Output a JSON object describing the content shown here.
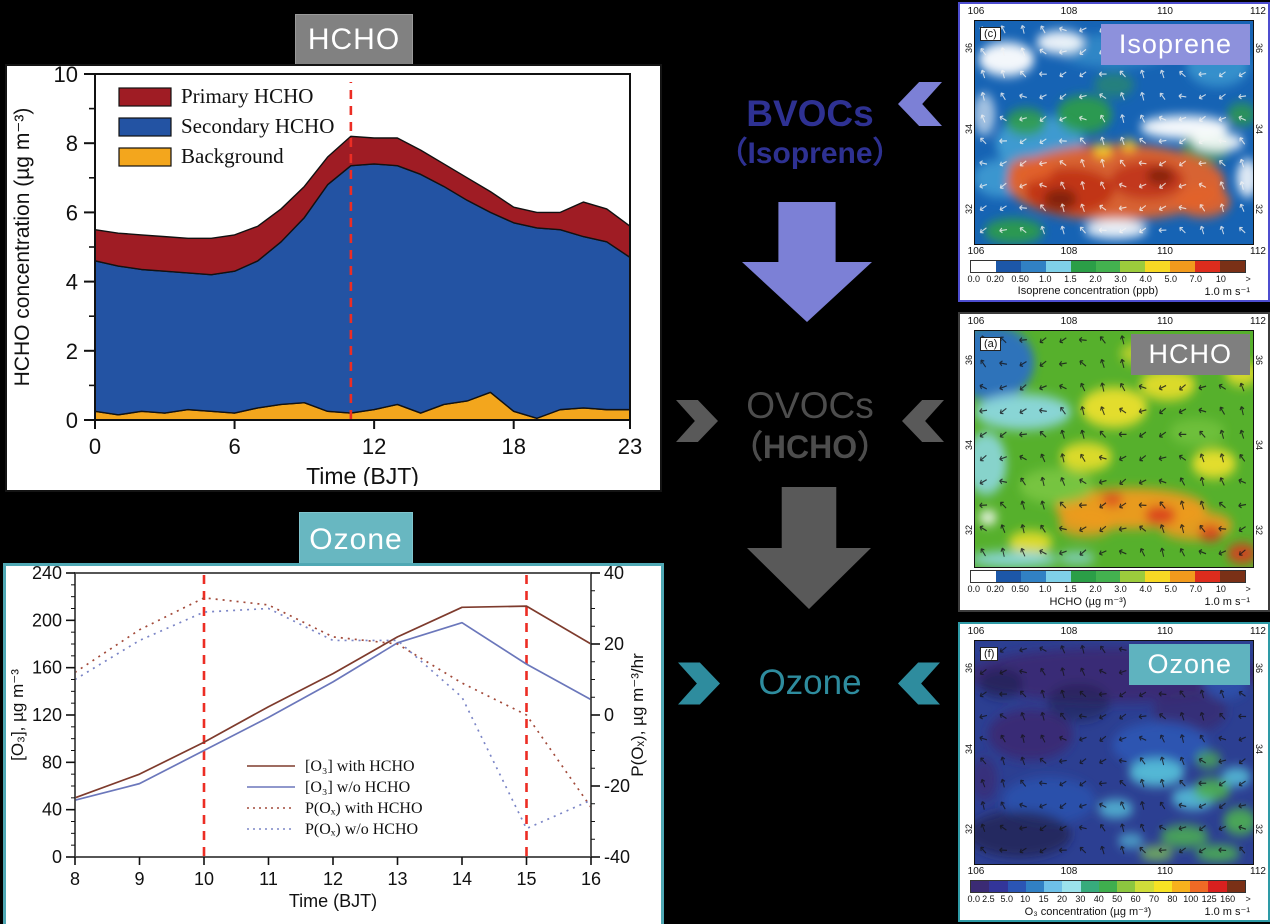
{
  "hcho_chart": {
    "title": "HCHO",
    "xlabel": "Time (BJT)",
    "ylabel": "HCHO concentration (µg m⁻³)",
    "legend": [
      "Primary HCHO",
      "Secondary HCHO",
      "Background"
    ],
    "legend_colors": [
      "#9f1c24",
      "#2353a3",
      "#f3a61d"
    ]
  },
  "ozone_chart": {
    "title": "Ozone",
    "xlabel": "Time (BJT)",
    "ylabel_left": "[O₃], µg m⁻³",
    "ylabel_right": "P(Oₓ), µg m⁻³/hr"
  },
  "chart_data": [
    {
      "type": "area",
      "title": "HCHO",
      "stacked": true,
      "x": [
        0,
        1,
        2,
        3,
        4,
        5,
        6,
        7,
        8,
        9,
        10,
        11,
        12,
        13,
        14,
        15,
        16,
        17,
        18,
        19,
        20,
        21,
        22,
        23
      ],
      "series": [
        {
          "name": "Background",
          "color": "#f3a61d",
          "values": [
            0.25,
            0.15,
            0.25,
            0.2,
            0.3,
            0.25,
            0.2,
            0.35,
            0.45,
            0.5,
            0.25,
            0.2,
            0.3,
            0.45,
            0.2,
            0.45,
            0.55,
            0.8,
            0.25,
            0.05,
            0.3,
            0.35,
            0.3,
            0.3
          ]
        },
        {
          "name": "Secondary HCHO",
          "color": "#2353a3",
          "values": [
            4.35,
            4.3,
            4.1,
            4.1,
            3.95,
            3.95,
            4.1,
            4.25,
            4.7,
            5.35,
            6.55,
            7.15,
            7.1,
            6.9,
            6.9,
            6.3,
            5.8,
            5.2,
            5.45,
            5.5,
            5.2,
            4.95,
            4.85,
            4.4
          ]
        },
        {
          "name": "Primary HCHO",
          "color": "#9f1c24",
          "values": [
            0.9,
            0.95,
            1.0,
            1.0,
            1.0,
            1.05,
            1.05,
            1.0,
            0.95,
            0.9,
            0.8,
            0.85,
            0.75,
            0.8,
            0.7,
            0.65,
            0.65,
            0.6,
            0.45,
            0.45,
            0.5,
            1.0,
            0.95,
            0.9
          ]
        }
      ],
      "xlabel": "Time (BJT)",
      "ylabel": "HCHO concentration (µg m⁻³)",
      "xlim": [
        0,
        23
      ],
      "ylim": [
        0,
        10
      ],
      "xticks": [
        0,
        6,
        12,
        18,
        23
      ],
      "yticks": [
        0,
        2,
        4,
        6,
        8,
        10
      ],
      "vlines": [
        {
          "x": 11,
          "color": "#ec2d24",
          "style": "dashed"
        }
      ],
      "legend_position": "top-left",
      "grid": false
    },
    {
      "type": "line",
      "title": "Ozone",
      "x": [
        8,
        9,
        10,
        11,
        12,
        13,
        14,
        15,
        16
      ],
      "series": [
        {
          "name": "[O₃] with HCHO",
          "axis": "left",
          "style": "solid",
          "color": "#7e3b2d",
          "values": [
            50,
            70,
            97,
            127,
            155,
            186,
            211,
            212,
            180
          ]
        },
        {
          "name": "[O₃] w/o HCHO",
          "axis": "left",
          "style": "solid",
          "color": "#6b77bb",
          "values": [
            48,
            62,
            90,
            118,
            148,
            181,
            198,
            163,
            133
          ]
        },
        {
          "name": "P(Oₓ) with HCHO",
          "axis": "right",
          "style": "dotted",
          "color": "#a24a3a",
          "values": [
            12,
            24,
            33,
            31,
            22,
            20,
            9,
            0,
            -26
          ]
        },
        {
          "name": "P(Oₓ) w/o HCHO",
          "axis": "right",
          "style": "dotted",
          "color": "#7b85c6",
          "values": [
            10,
            21,
            29,
            30,
            21,
            21,
            5,
            -32,
            -24
          ]
        }
      ],
      "xlabel": "Time (BJT)",
      "ylabel_left": "[O₃], µg m⁻³",
      "ylabel_right": "P(Oₓ), µg m⁻³/hr",
      "xlim": [
        8,
        16
      ],
      "ylim_left": [
        0,
        240
      ],
      "ylim_right": [
        -40,
        40
      ],
      "xticks": [
        8,
        9,
        10,
        11,
        12,
        13,
        14,
        15,
        16
      ],
      "yticks_left": [
        0,
        40,
        80,
        120,
        160,
        200,
        240
      ],
      "yticks_right": [
        -40,
        -20,
        0,
        20,
        40
      ],
      "vlines": [
        {
          "x": 10,
          "color": "#ec2d24",
          "style": "dashed"
        },
        {
          "x": 15,
          "color": "#ec2d24",
          "style": "dashed"
        }
      ],
      "legend_position": "center",
      "grid": false
    }
  ],
  "flow": {
    "bvocs_line1": "BVOCs",
    "bvocs_line2": "（Isoprene）",
    "ovocs_line1": "OVOCs",
    "ovocs_line2": "（HCHO）",
    "ozone_label": "Ozone",
    "colors": {
      "bvocs_text": "#2e3192",
      "purple": "#7c80d6",
      "gray": "#595959",
      "teal": "#2e8c9e"
    }
  },
  "maps": [
    {
      "id": "iso",
      "panel_letter": "(c)",
      "badge": "Isoprene",
      "badge_color": "#8d91dc",
      "border_color": "#4d4dcf",
      "lon_ticks": [
        "106",
        "108",
        "110",
        "112"
      ],
      "lat_ticks": [
        "36",
        "34",
        "32"
      ],
      "bottom_lon_ticks": true,
      "caption": "Isoprene concentration (ppb)",
      "wind_ref": "1.0 m s⁻¹",
      "colorbar_ticks": [
        "0.0",
        "0.20",
        "0.50",
        "1.0",
        "1.5",
        "2.0",
        "3.0",
        "4.0",
        "5.0",
        "7.0",
        "10",
        ">"
      ],
      "colorbar_colors": [
        "#ffffff",
        "#1c57a8",
        "#3181c4",
        "#7fd0e8",
        "#2b9e47",
        "#43b14f",
        "#9ccb3c",
        "#f7d824",
        "#f29a1d",
        "#dd2c1d",
        "#7a3016"
      ],
      "palette": [
        "#1663b4",
        "#45a3d6",
        "#2f9e45",
        "#e2622b",
        "#c03318",
        "#7e2110",
        "#ffd226",
        "#ffffff"
      ]
    },
    {
      "id": "hcho",
      "panel_letter": "(a)",
      "badge": "HCHO",
      "badge_color": "#7f7f7f",
      "border_color": "#3c3c3c",
      "lon_ticks": [
        "106",
        "108",
        "110",
        "112"
      ],
      "lat_ticks": [
        "36",
        "34",
        "32"
      ],
      "bottom_lon_ticks": false,
      "caption": "HCHO (µg m⁻³)",
      "wind_ref": "1.0 m s⁻¹",
      "colorbar_ticks": [
        "0.0",
        "0.20",
        "0.50",
        "1.0",
        "1.5",
        "2.0",
        "3.0",
        "4.0",
        "5.0",
        "7.0",
        "10",
        ">"
      ],
      "colorbar_colors": [
        "#ffffff",
        "#1c57a8",
        "#3181c4",
        "#7fd0e8",
        "#2b9e47",
        "#43b14f",
        "#9ccb3c",
        "#f7d824",
        "#f29a1d",
        "#dd2c1d",
        "#7a3016"
      ],
      "palette": [
        "#56b02c",
        "#7ec943",
        "#f2e22c",
        "#f09a1e",
        "#d93b1e",
        "#2a70c2",
        "#8fd9e8",
        "#ffffff"
      ]
    },
    {
      "id": "o3",
      "panel_letter": "(f)",
      "badge": "Ozone",
      "badge_color": "#5fb3bf",
      "border_color": "#2e9aa6",
      "lon_ticks": [
        "106",
        "108",
        "110",
        "112"
      ],
      "lat_ticks": [
        "36",
        "34",
        "32"
      ],
      "bottom_lon_ticks": true,
      "caption": "O₃ concentration (µg m⁻³)",
      "wind_ref": "1.0 m s⁻¹",
      "colorbar_ticks": [
        "0.0",
        "2.5",
        "5.0",
        "10",
        "15",
        "20",
        "30",
        "40",
        "50",
        "60",
        "70",
        "80",
        "100",
        "125",
        "160",
        ">"
      ],
      "colorbar_colors": [
        "#3b2b74",
        "#33359a",
        "#2b55b4",
        "#3180c4",
        "#6ec0e8",
        "#9be2ec",
        "#37ab7c",
        "#3fae4e",
        "#8cc63f",
        "#cfdd3a",
        "#f7e324",
        "#f7b11d",
        "#ef6a25",
        "#d8201f",
        "#7a3016"
      ],
      "palette": [
        "#2c3f92",
        "#3a2a72",
        "#2b57b5",
        "#58c4dc",
        "#4cb052",
        "#8fd94a",
        "#20214f"
      ]
    }
  ]
}
